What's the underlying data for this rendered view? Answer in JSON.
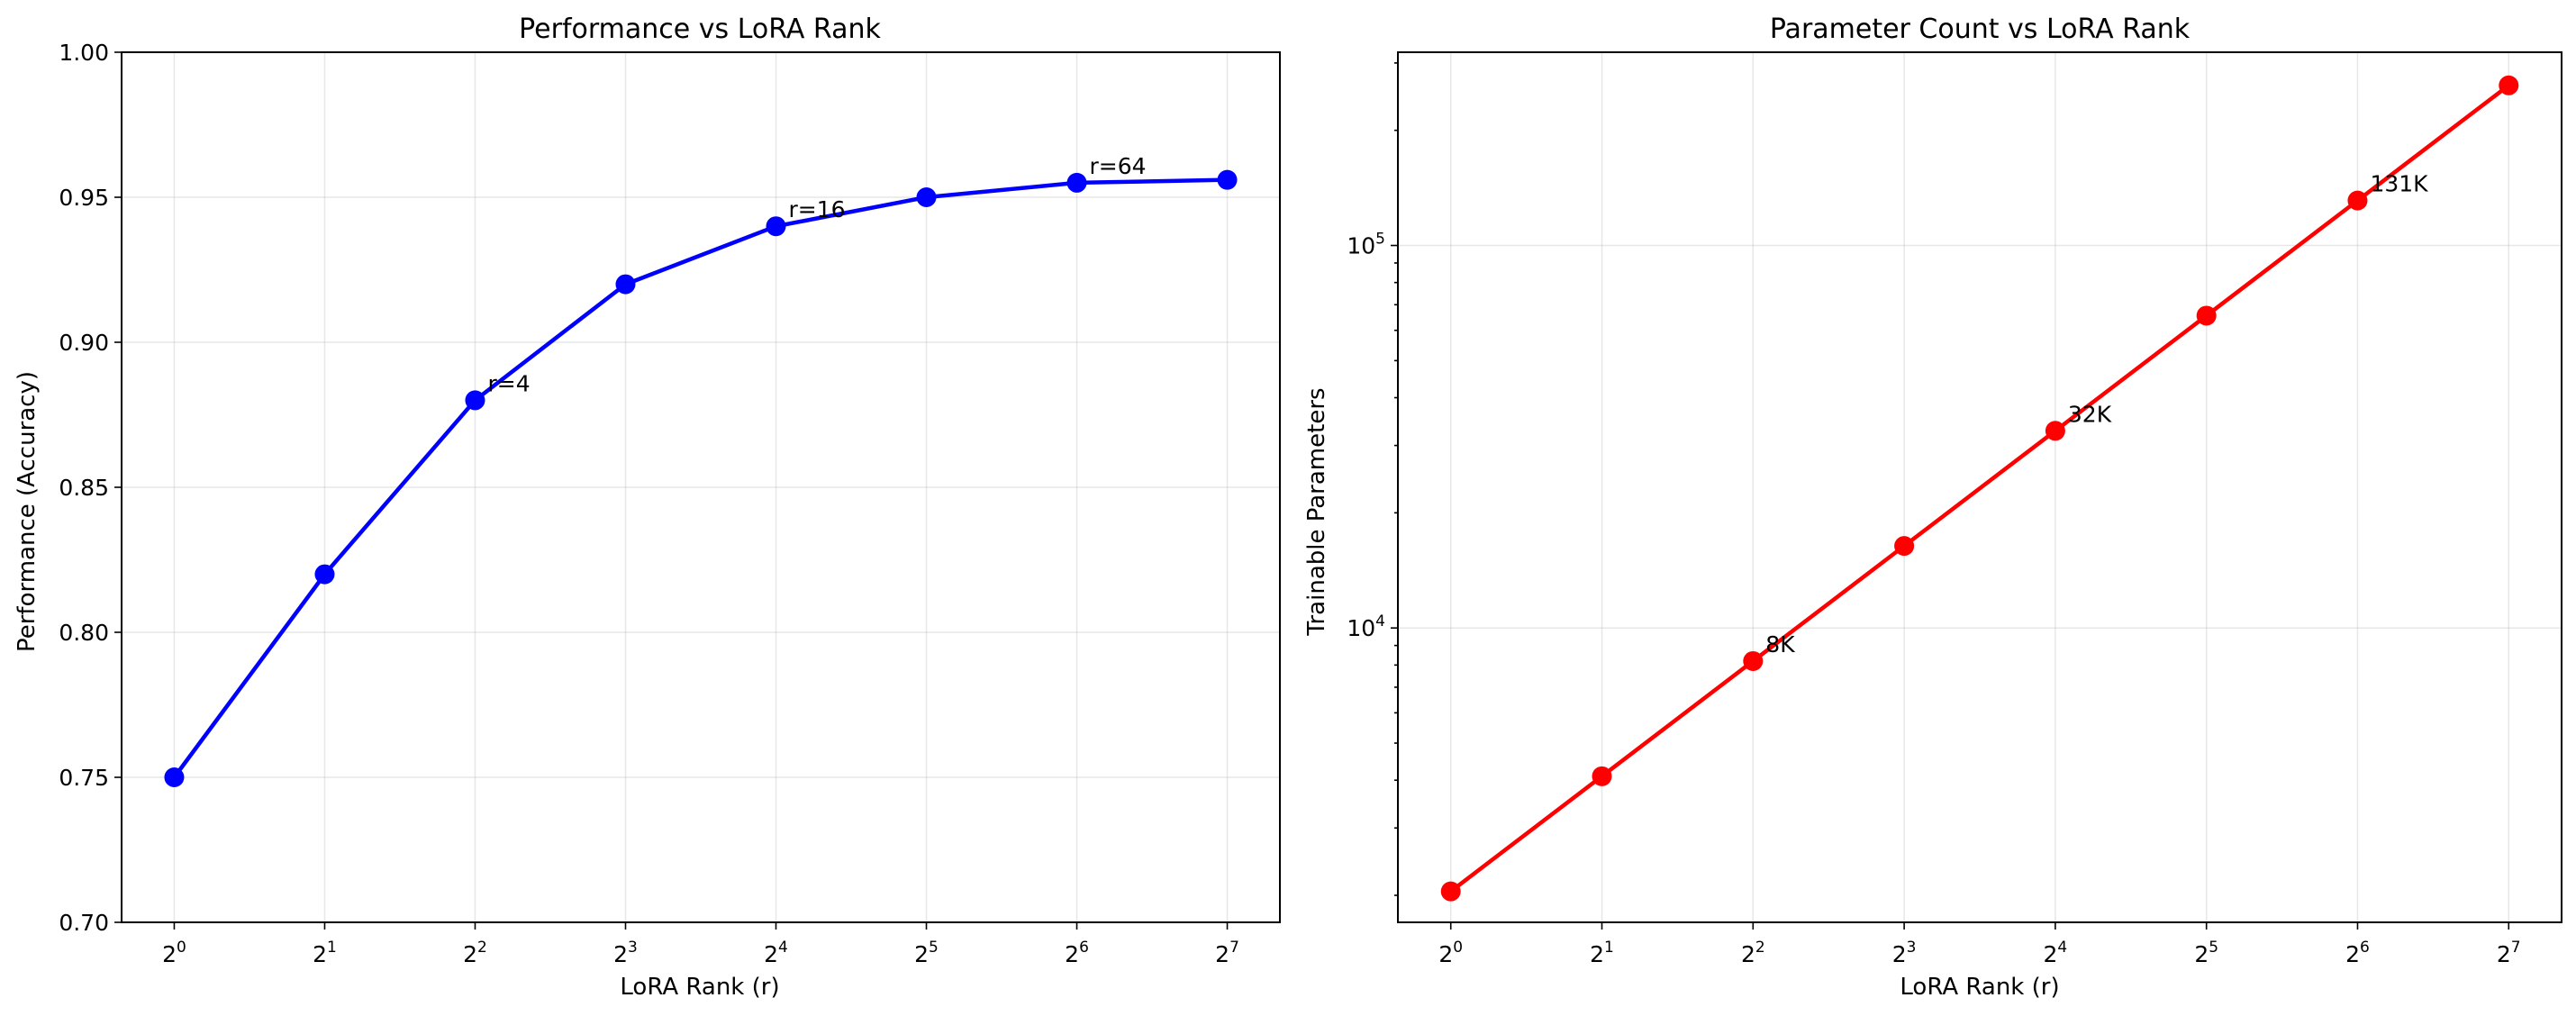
{
  "chart_data": [
    {
      "type": "line",
      "title": "Performance vs LoRA Rank",
      "xlabel": "LoRA Rank (r)",
      "ylabel": "Performance (Accuracy)",
      "x_scale": "log2",
      "x": [
        1,
        2,
        4,
        8,
        16,
        32,
        64,
        128
      ],
      "x_tick_labels": [
        {
          "base": "2",
          "exp": "0"
        },
        {
          "base": "2",
          "exp": "1"
        },
        {
          "base": "2",
          "exp": "2"
        },
        {
          "base": "2",
          "exp": "3"
        },
        {
          "base": "2",
          "exp": "4"
        },
        {
          "base": "2",
          "exp": "5"
        },
        {
          "base": "2",
          "exp": "6"
        },
        {
          "base": "2",
          "exp": "7"
        }
      ],
      "series": [
        {
          "values": [
            0.75,
            0.82,
            0.88,
            0.92,
            0.94,
            0.95,
            0.955,
            0.956
          ],
          "color": "#0000ff"
        }
      ],
      "ylim": [
        0.7,
        1.0
      ],
      "y_ticks": [
        0.7,
        0.75,
        0.8,
        0.85,
        0.9,
        0.95,
        1.0
      ],
      "y_tick_labels": [
        "0.70",
        "0.75",
        "0.80",
        "0.85",
        "0.90",
        "0.95",
        "1.00"
      ],
      "annotations": [
        {
          "x": 4,
          "y": 0.88,
          "text": "r=4"
        },
        {
          "x": 16,
          "y": 0.94,
          "text": "r=16"
        },
        {
          "x": 64,
          "y": 0.955,
          "text": "r=64"
        }
      ],
      "grid": true
    },
    {
      "type": "line",
      "title": "Parameter Count vs LoRA Rank",
      "xlabel": "LoRA Rank (r)",
      "ylabel": "Trainable Parameters",
      "x_scale": "log2",
      "y_scale": "log10",
      "x": [
        1,
        2,
        4,
        8,
        16,
        32,
        64,
        128
      ],
      "x_tick_labels": [
        {
          "base": "2",
          "exp": "0"
        },
        {
          "base": "2",
          "exp": "1"
        },
        {
          "base": "2",
          "exp": "2"
        },
        {
          "base": "2",
          "exp": "3"
        },
        {
          "base": "2",
          "exp": "4"
        },
        {
          "base": "2",
          "exp": "5"
        },
        {
          "base": "2",
          "exp": "6"
        },
        {
          "base": "2",
          "exp": "7"
        }
      ],
      "series": [
        {
          "values": [
            2048,
            4096,
            8192,
            16384,
            32768,
            65536,
            131072,
            262144
          ],
          "color": "#ff0000"
        }
      ],
      "ylim": [
        1700,
        320000
      ],
      "y_major_ticks": [
        10000,
        100000
      ],
      "y_tick_labels": [
        {
          "base": "10",
          "exp": "4"
        },
        {
          "base": "10",
          "exp": "5"
        }
      ],
      "annotations": [
        {
          "x": 4,
          "y": 8192,
          "text": "8K"
        },
        {
          "x": 16,
          "y": 32768,
          "text": "32K"
        },
        {
          "x": 64,
          "y": 131072,
          "text": "131K"
        }
      ],
      "grid": true
    }
  ]
}
